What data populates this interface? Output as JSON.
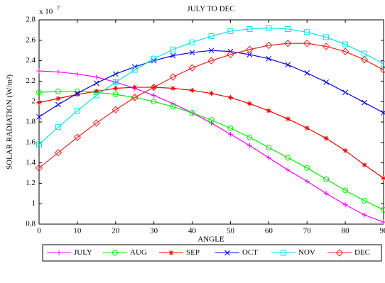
{
  "chart_data": {
    "type": "line",
    "title": "JULY TO DEC",
    "x_label": "ANGLE",
    "y_label": "SOLAR RADIATION (W/m²)",
    "y_multiplier": {
      "base": "x 10",
      "exponent": "7"
    },
    "x": [
      0,
      5,
      10,
      15,
      20,
      25,
      30,
      35,
      40,
      45,
      50,
      55,
      60,
      65,
      70,
      75,
      80,
      85,
      90
    ],
    "xlim": [
      0,
      90
    ],
    "xticks": [
      0,
      10,
      20,
      30,
      40,
      50,
      60,
      70,
      80,
      90
    ],
    "ylim": [
      0.8,
      2.8
    ],
    "yticks": [
      0.8,
      1,
      1.2,
      1.4,
      1.6,
      1.8,
      2,
      2.2,
      2.4,
      2.6,
      2.8
    ],
    "grid": false,
    "legend": "bottom",
    "series": [
      {
        "name": "JULY",
        "color": "#ff00ff",
        "marker": "plus",
        "values": [
          2.3,
          2.29,
          2.27,
          2.24,
          2.19,
          2.13,
          2.06,
          1.98,
          1.89,
          1.79,
          1.68,
          1.57,
          1.45,
          1.33,
          1.22,
          1.1,
          0.99,
          0.89,
          0.82
        ]
      },
      {
        "name": "AUG",
        "color": "#00ee00",
        "marker": "circle",
        "values": [
          2.09,
          2.1,
          2.1,
          2.09,
          2.07,
          2.04,
          2.0,
          1.95,
          1.89,
          1.82,
          1.74,
          1.65,
          1.55,
          1.45,
          1.35,
          1.24,
          1.13,
          1.03,
          0.94
        ]
      },
      {
        "name": "SEP",
        "color": "#ee0000",
        "marker": "star",
        "values": [
          1.99,
          2.03,
          2.07,
          2.1,
          2.13,
          2.14,
          2.14,
          2.13,
          2.11,
          2.08,
          2.04,
          1.98,
          1.91,
          1.83,
          1.74,
          1.64,
          1.52,
          1.38,
          1.25
        ]
      },
      {
        "name": "OCT",
        "color": "#0000ee",
        "marker": "x",
        "values": [
          1.85,
          1.97,
          2.08,
          2.18,
          2.27,
          2.34,
          2.4,
          2.45,
          2.48,
          2.5,
          2.49,
          2.46,
          2.42,
          2.36,
          2.28,
          2.19,
          2.09,
          1.99,
          1.89
        ]
      },
      {
        "name": "NOV",
        "color": "#00e5e5",
        "marker": "square",
        "values": [
          1.58,
          1.75,
          1.91,
          2.06,
          2.19,
          2.31,
          2.42,
          2.51,
          2.58,
          2.64,
          2.69,
          2.71,
          2.72,
          2.71,
          2.68,
          2.63,
          2.56,
          2.47,
          2.37
        ]
      },
      {
        "name": "DEC",
        "color": "#ee2222",
        "marker": "diamond",
        "values": [
          1.35,
          1.5,
          1.65,
          1.79,
          1.92,
          2.04,
          2.14,
          2.24,
          2.33,
          2.4,
          2.46,
          2.51,
          2.55,
          2.57,
          2.57,
          2.54,
          2.49,
          2.41,
          2.31
        ]
      }
    ]
  }
}
